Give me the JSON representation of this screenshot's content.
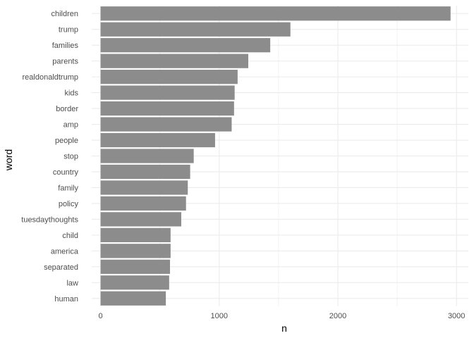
{
  "chart_data": {
    "type": "bar",
    "orientation": "horizontal",
    "xlabel": "n",
    "ylabel": "word",
    "xlim": [
      -75,
      3100
    ],
    "x_ticks": [
      0,
      1000,
      2000,
      3000
    ],
    "x_tick_labels": [
      "0",
      "1000",
      "2000",
      "3000"
    ],
    "grid": true,
    "bar_color": "#8c8c8c",
    "grid_color": "#ebebeb",
    "categories": [
      "children",
      "trump",
      "families",
      "parents",
      "realdonaldtrump",
      "kids",
      "border",
      "amp",
      "people",
      "stop",
      "country",
      "family",
      "policy",
      "tuesdaythoughts",
      "child",
      "america",
      "separated",
      "law",
      "human"
    ],
    "values": [
      2950,
      1600,
      1430,
      1245,
      1155,
      1130,
      1125,
      1105,
      965,
      785,
      755,
      735,
      720,
      680,
      590,
      590,
      585,
      578,
      550
    ]
  }
}
